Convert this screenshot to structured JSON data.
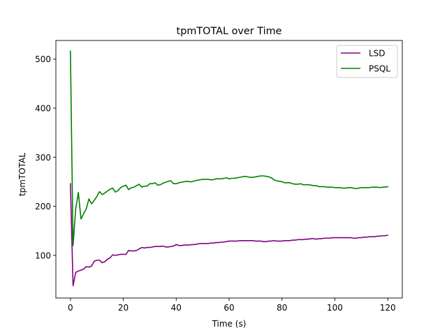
{
  "chart_data": {
    "type": "line",
    "title": "tpmTOTAL over Time",
    "xlabel": "Time (s)",
    "ylabel": "tpmTOTAL",
    "xlim": [
      -5.5,
      125.5
    ],
    "ylim": [
      13,
      538
    ],
    "xticks": [
      0,
      20,
      40,
      60,
      80,
      100,
      120
    ],
    "yticks": [
      100,
      200,
      300,
      400,
      500
    ],
    "grid": false,
    "legend": "top-right",
    "series": [
      {
        "name": "LSD",
        "color": "#800080",
        "x": [
          0,
          1,
          2,
          3,
          4,
          5,
          6,
          7,
          8,
          9,
          10,
          11,
          12,
          13,
          14,
          15,
          16,
          17,
          18,
          19,
          20,
          21,
          22,
          23,
          24,
          25,
          26,
          27,
          28,
          29,
          30,
          31,
          32,
          33,
          34,
          35,
          36,
          37,
          38,
          39,
          40,
          41,
          42,
          43,
          44,
          45,
          46,
          47,
          48,
          49,
          50,
          51,
          52,
          53,
          54,
          55,
          56,
          57,
          58,
          59,
          60,
          61,
          62,
          63,
          64,
          65,
          66,
          67,
          68,
          69,
          70,
          71,
          72,
          73,
          74,
          75,
          76,
          77,
          78,
          79,
          80,
          81,
          82,
          83,
          84,
          85,
          86,
          87,
          88,
          89,
          90,
          91,
          92,
          93,
          94,
          95,
          96,
          97,
          98,
          99,
          100,
          101,
          102,
          103,
          104,
          105,
          106,
          107,
          108,
          109,
          110,
          111,
          112,
          113,
          114,
          115,
          116,
          117,
          118,
          119,
          120
        ],
        "y": [
          246,
          38,
          65,
          68,
          70,
          72,
          77,
          76,
          78,
          88,
          90,
          90,
          85,
          87,
          92,
          95,
          101,
          100,
          101,
          102,
          102,
          102,
          110,
          109,
          109,
          110,
          113,
          116,
          115,
          116,
          116,
          117,
          118,
          118,
          118,
          119,
          117,
          117,
          118,
          119,
          122,
          120,
          120,
          121,
          121,
          121,
          122,
          122,
          123,
          124,
          124,
          124,
          124,
          125,
          125,
          126,
          126,
          127,
          127,
          128,
          129,
          129,
          129,
          129,
          130,
          130,
          130,
          130,
          130,
          130,
          129,
          129,
          129,
          128,
          128,
          129,
          129,
          130,
          129,
          129,
          129,
          130,
          130,
          130,
          131,
          131,
          132,
          132,
          132,
          133,
          133,
          134,
          134,
          133,
          134,
          134,
          135,
          135,
          135,
          136,
          136,
          136,
          136,
          136,
          136,
          136,
          136,
          135,
          135,
          136,
          136,
          137,
          137,
          138,
          138,
          138,
          139,
          139,
          140,
          140,
          141
        ]
      },
      {
        "name": "PSQL",
        "color": "#008000",
        "x": [
          0,
          1,
          2,
          3,
          4,
          5,
          6,
          7,
          8,
          9,
          10,
          11,
          12,
          13,
          14,
          15,
          16,
          17,
          18,
          19,
          20,
          21,
          22,
          23,
          24,
          25,
          26,
          27,
          28,
          29,
          30,
          31,
          32,
          33,
          34,
          35,
          36,
          37,
          38,
          39,
          40,
          41,
          42,
          43,
          44,
          45,
          46,
          47,
          48,
          49,
          50,
          51,
          52,
          53,
          54,
          55,
          56,
          57,
          58,
          59,
          60,
          61,
          62,
          63,
          64,
          65,
          66,
          67,
          68,
          69,
          70,
          71,
          72,
          73,
          74,
          75,
          76,
          77,
          78,
          79,
          80,
          81,
          82,
          83,
          84,
          85,
          86,
          87,
          88,
          89,
          90,
          91,
          92,
          93,
          94,
          95,
          96,
          97,
          98,
          99,
          100,
          101,
          102,
          103,
          104,
          105,
          106,
          107,
          108,
          109,
          110,
          111,
          112,
          113,
          114,
          115,
          116,
          117,
          118,
          119,
          120
        ],
        "y": [
          516,
          120,
          195,
          228,
          174,
          185,
          195,
          215,
          205,
          212,
          220,
          230,
          224,
          227,
          231,
          235,
          237,
          229,
          232,
          238,
          241,
          243,
          234,
          238,
          239,
          242,
          245,
          239,
          241,
          241,
          246,
          246,
          248,
          243,
          244,
          247,
          249,
          251,
          252,
          246,
          246,
          248,
          249,
          250,
          251,
          250,
          250,
          252,
          253,
          254,
          255,
          255,
          255,
          254,
          254,
          256,
          256,
          256,
          257,
          258,
          256,
          257,
          257,
          258,
          259,
          260,
          261,
          260,
          259,
          259,
          260,
          261,
          262,
          262,
          261,
          260,
          258,
          254,
          252,
          251,
          250,
          248,
          248,
          248,
          246,
          245,
          245,
          246,
          244,
          244,
          244,
          243,
          242,
          242,
          240,
          240,
          240,
          239,
          239,
          239,
          238,
          238,
          238,
          237,
          237,
          238,
          238,
          237,
          236,
          237,
          238,
          238,
          238,
          238,
          239,
          239,
          239,
          238,
          239,
          239,
          240
        ]
      }
    ]
  }
}
